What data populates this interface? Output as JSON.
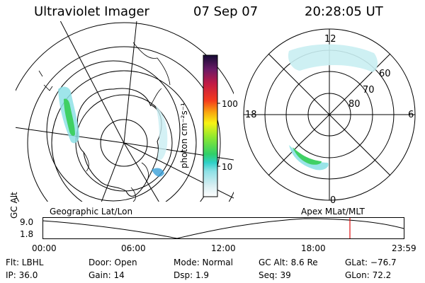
{
  "header": {
    "instrument": "Ultraviolet Imager",
    "date": "07 Sep 07",
    "time": "20:28:05 UT"
  },
  "colorbar": {
    "unit_label": "photon cm⁻²s⁻¹",
    "ticks": [
      "100",
      "10"
    ],
    "scale": "log",
    "colors": [
      "#ffffff",
      "#e6f6f9",
      "#c9eef2",
      "#8ee1e6",
      "#3ad0d0",
      "#2fd08c",
      "#2fd04c",
      "#6fe03a",
      "#aaea2a",
      "#d7f021",
      "#f7f314",
      "#f9c40f",
      "#fb8b0b",
      "#f43a1d",
      "#d51e3a",
      "#a31d57",
      "#5d1a63",
      "#1b0f3e"
    ]
  },
  "left_panel": {
    "label": "Geographic Lat/Lon"
  },
  "right_panel": {
    "label": "Apex MLat/MLT",
    "mlt_labels": {
      "top": "12",
      "bottom": "0",
      "left": "18",
      "right": "6"
    },
    "mlat_labels": [
      "60",
      "70",
      "80"
    ]
  },
  "altitude_plot": {
    "ylabel": "GC Alt",
    "yticks": [
      "9.0",
      "1.8"
    ],
    "xticks": [
      "00:00",
      "06:00",
      "12:00",
      "18:00",
      "23:59"
    ],
    "current_time_marker": "20:28",
    "marker_color": "#e01010"
  },
  "status": {
    "filter": "Flt: LBHL",
    "ip": "IP: 36.0",
    "door": "Door: Open",
    "gain": "Gain: 14",
    "mode": "Mode: Normal",
    "dsp": "Dsp:    1.9",
    "gc_alt": "GC Alt: 8.6 Re",
    "seq": "Seq: 39",
    "glat": "GLat: −76.7",
    "glon": "GLon:  72.2"
  }
}
